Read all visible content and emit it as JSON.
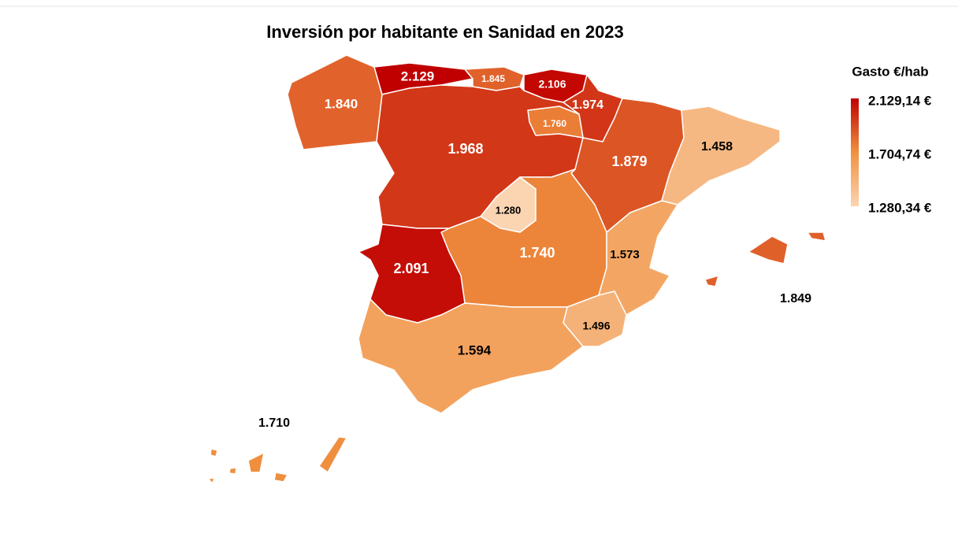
{
  "chart_data": {
    "type": "choropleth",
    "title": "Inversión por habitante en Sanidad en 2023",
    "legend_title": "Gasto €/hab",
    "colorscale": {
      "min": {
        "value": 1280.34,
        "label": "1.280,34 €",
        "color": "#fbd4b2"
      },
      "mid": {
        "value": 1704.74,
        "label": "1.704,74 €",
        "color": "#f0913f"
      },
      "max": {
        "value": 2129.14,
        "label": "2.129,14 €",
        "color": "#c00000"
      }
    },
    "values": [
      1840,
      2129,
      1845,
      2106,
      1974,
      1760,
      1968,
      1879,
      1458,
      1280,
      1740,
      2091,
      1573,
      1496,
      1594,
      1849,
      1710
    ],
    "value_labels": [
      "1.840",
      "2.129",
      "1.845",
      "2.106",
      "1.974",
      "1.760",
      "1.968",
      "1.879",
      "1.458",
      "1.280",
      "1.740",
      "2.091",
      "1.573",
      "1.496",
      "1.594",
      "1.849",
      "1.710"
    ]
  }
}
